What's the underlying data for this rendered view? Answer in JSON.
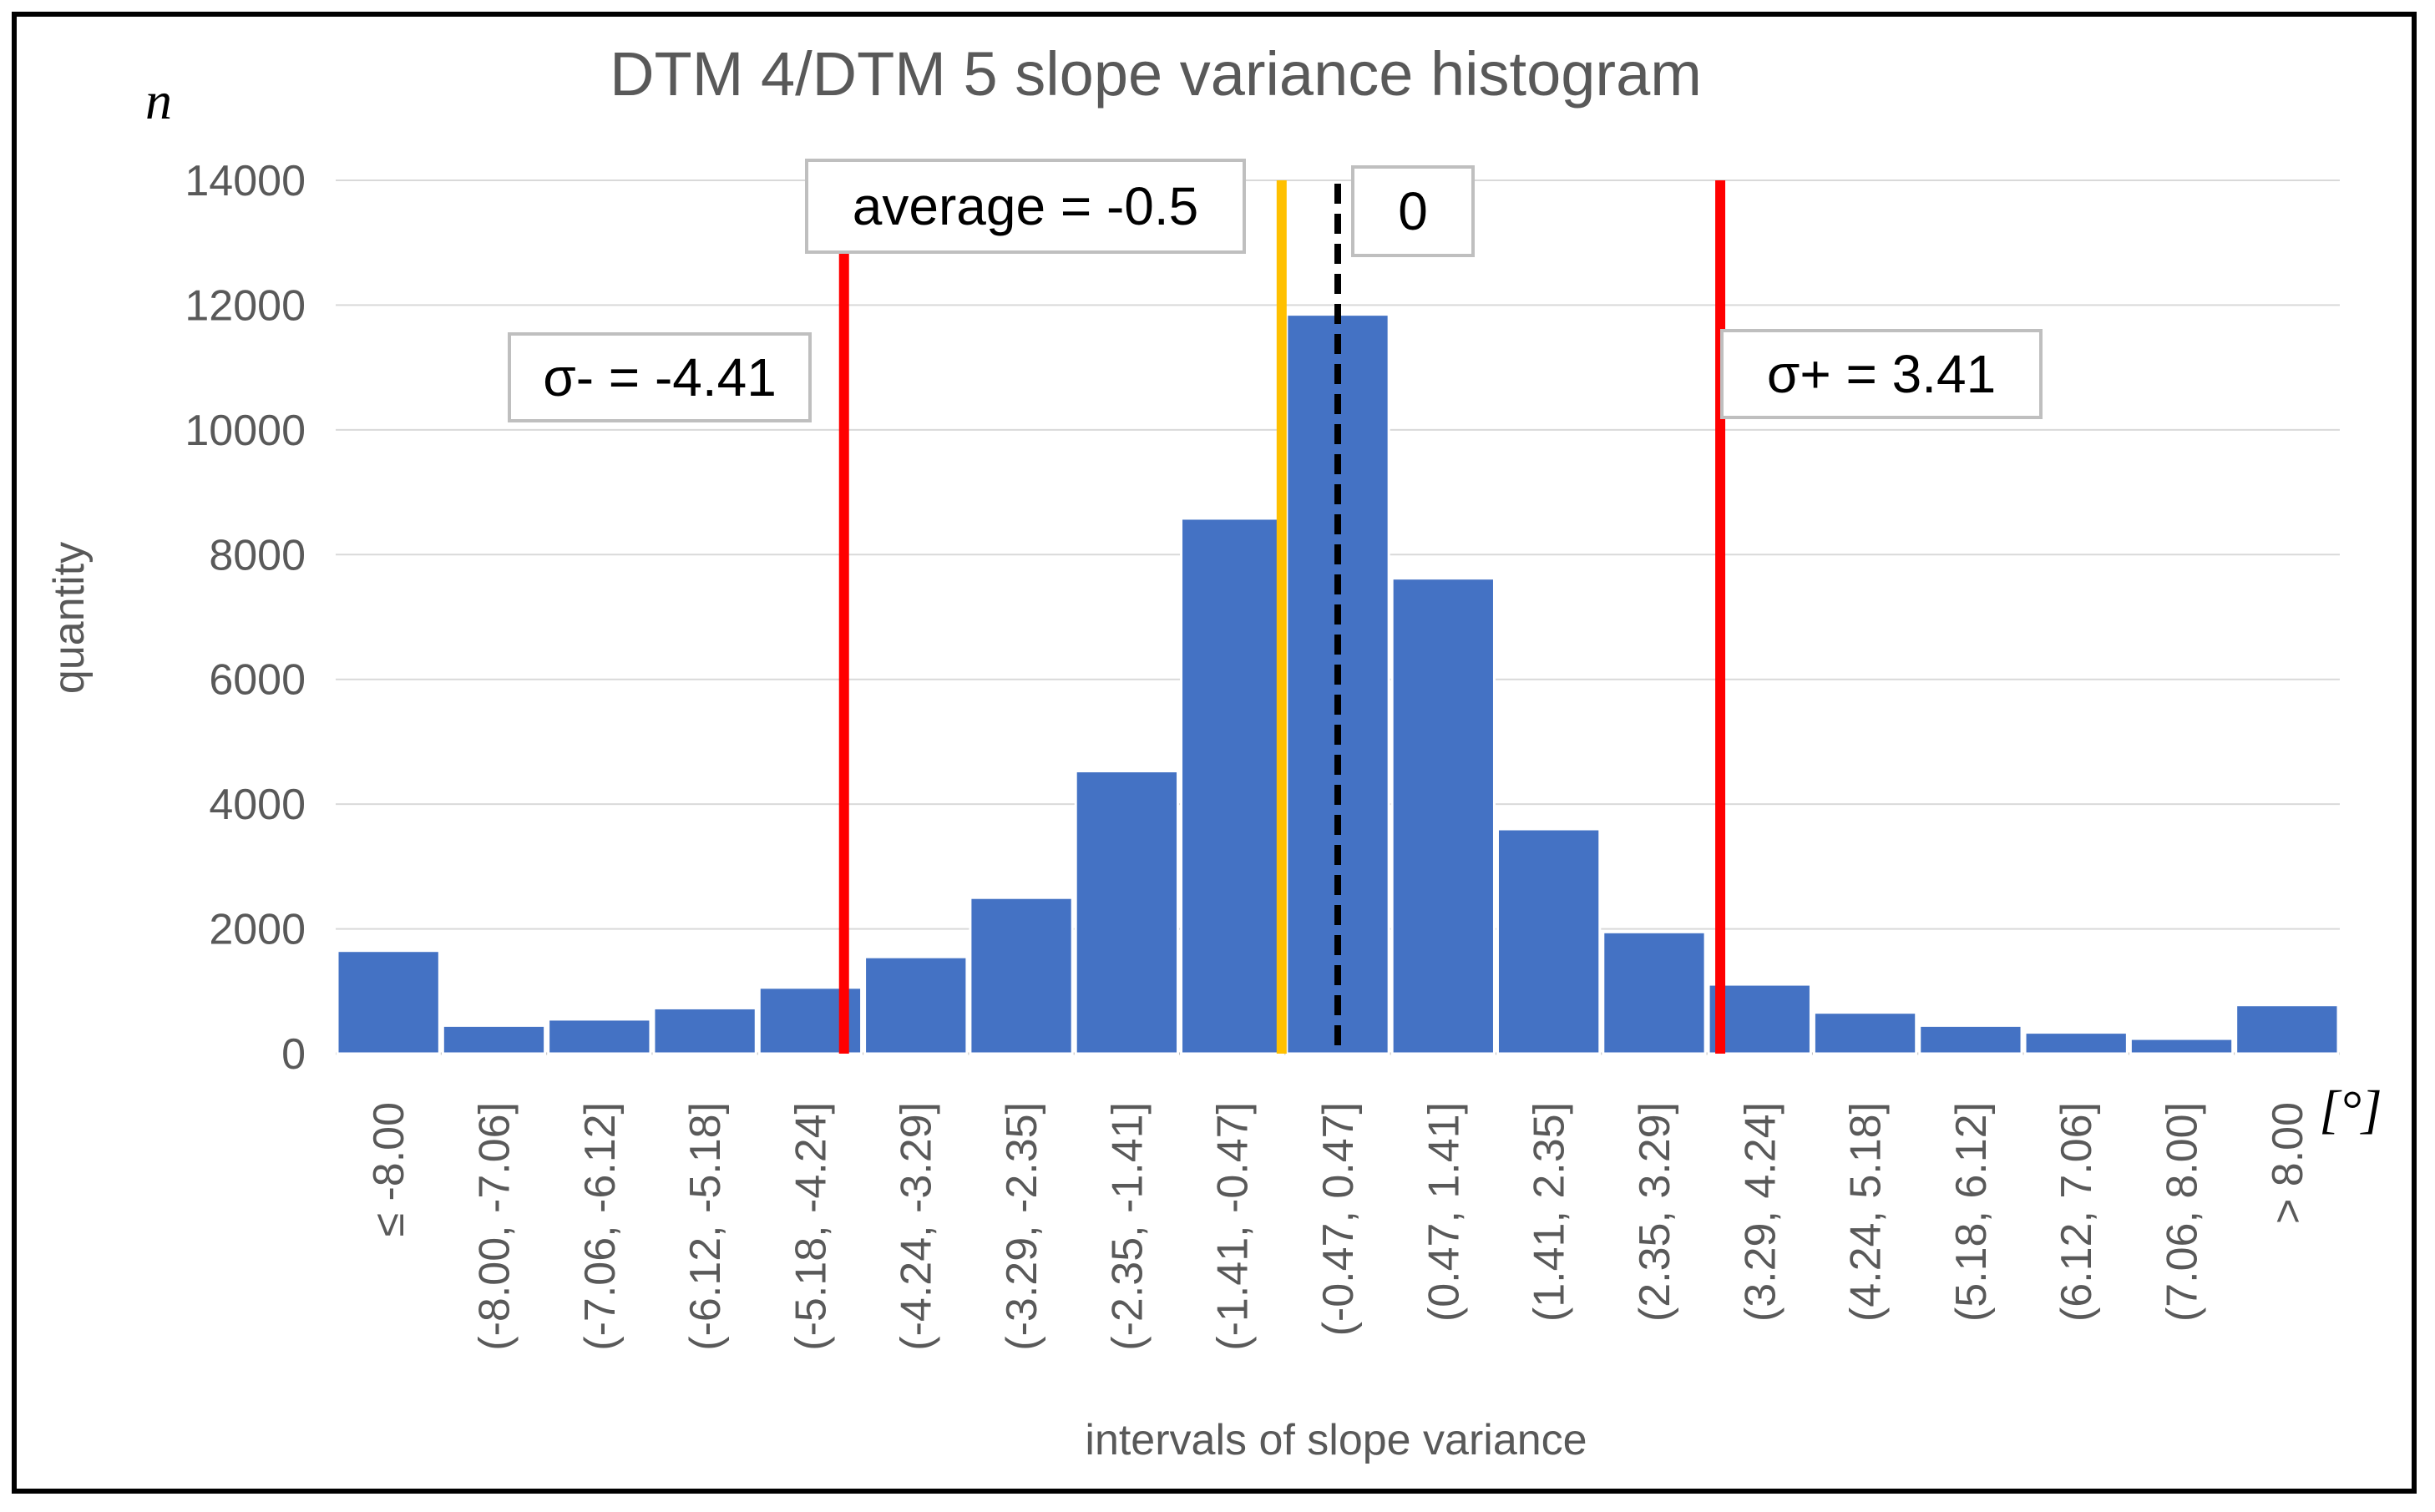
{
  "chart_data": {
    "type": "bar",
    "title": "DTM 4/DTM 5 slope variance histogram",
    "xlabel": "intervals of slope variance",
    "ylabel": "quantity",
    "y_symbol": "n",
    "x_unit": "[°]",
    "ylim": [
      0,
      14000
    ],
    "yticks": [
      "0",
      "2000",
      "4000",
      "6000",
      "8000",
      "10000",
      "12000",
      "14000"
    ],
    "grid": true,
    "categories": [
      "≤ -8.00",
      "(-8.00, -7.06]",
      "(-7.06, -6.12]",
      "(-6.12, -5.18]",
      "(-5.18, -4.24]",
      "(-4.24, -3.29]",
      "(-3.29, -2.35]",
      "(-2.35, -1.41]",
      "(-1.41, -0.47]",
      "(-0.47, 0.47]",
      "(0.47, 1.41]",
      "(1.41, 2.35]",
      "(2.35, 3.29]",
      "(3.29, 4.24]",
      "(4.24, 5.18]",
      "(5.18, 6.12]",
      "(6.12, 7.06]",
      "(7.06, 8.00]",
      "> 8.00"
    ],
    "values": [
      1650,
      450,
      550,
      730,
      1060,
      1550,
      2500,
      4530,
      8580,
      11850,
      7620,
      3600,
      1950,
      1110,
      660,
      450,
      340,
      240,
      780
    ],
    "bar_color": "#4472C4",
    "reference_lines": [
      {
        "name": "sigma-minus",
        "value": -4.41,
        "color": "#FF0000",
        "style": "solid",
        "label": "σ- = -4.41"
      },
      {
        "name": "average",
        "value": -0.5,
        "color": "#FFC000",
        "style": "solid",
        "label": "average = -0.5"
      },
      {
        "name": "zero",
        "value": 0,
        "color": "#000000",
        "style": "dashed",
        "label": "0"
      },
      {
        "name": "sigma-plus",
        "value": 3.41,
        "color": "#FF0000",
        "style": "solid",
        "label": "σ+ = 3.41"
      }
    ]
  }
}
